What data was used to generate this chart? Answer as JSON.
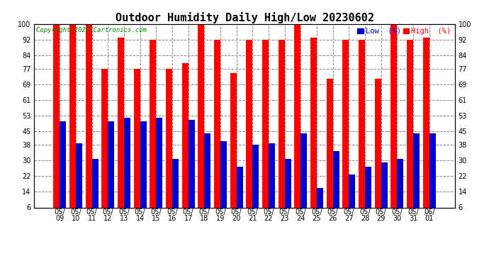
{
  "title": "Outdoor Humidity Daily High/Low 20230602",
  "copyright": "Copyright 2023 Cartronics.com",
  "legend_low_label": "Low  (%)",
  "legend_high_label": "High  (%)",
  "categories": [
    "05/\n09",
    "05/\n10",
    "05/\n11",
    "05/\n12",
    "05/\n13",
    "05/\n14",
    "05/\n15",
    "05/\n16",
    "05/\n17",
    "05/\n18",
    "05/\n19",
    "05/\n20",
    "05/\n21",
    "05/\n22",
    "05/\n23",
    "05/\n24",
    "05/\n25",
    "05/\n26",
    "05/\n27",
    "05/\n28",
    "05/\n29",
    "05/\n30",
    "05/\n31",
    "06/\n01"
  ],
  "high_values": [
    100,
    100,
    100,
    77,
    93,
    77,
    92,
    77,
    80,
    100,
    92,
    75,
    92,
    92,
    92,
    100,
    93,
    72,
    92,
    92,
    72,
    100,
    92,
    93
  ],
  "low_values": [
    50,
    39,
    31,
    50,
    52,
    50,
    52,
    31,
    51,
    44,
    40,
    27,
    38,
    39,
    31,
    44,
    16,
    35,
    23,
    27,
    29,
    31,
    44,
    44
  ],
  "high_color": "#ff0000",
  "low_color": "#0000cc",
  "background_color": "#ffffff",
  "plot_bg_color": "#ffffff",
  "grid_color": "#888888",
  "ylim": [
    6,
    100
  ],
  "yticks": [
    6,
    14,
    22,
    30,
    38,
    45,
    53,
    61,
    69,
    77,
    84,
    92,
    100
  ],
  "bar_width": 0.4,
  "title_fontsize": 11,
  "tick_fontsize": 7,
  "label_color_low": "#0000cc",
  "label_color_high": "#ff0000"
}
